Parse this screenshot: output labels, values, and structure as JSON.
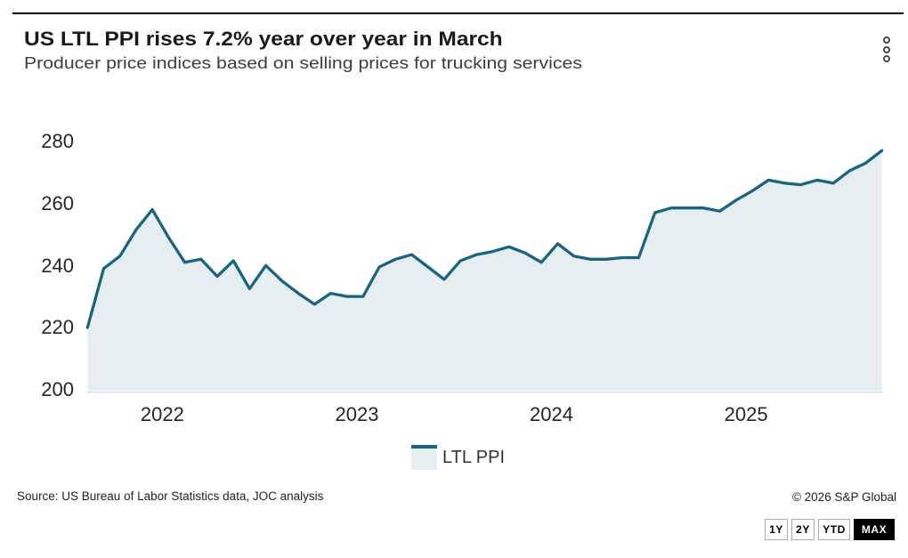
{
  "header": {
    "title": "US LTL PPI rises 7.2% year over year in March",
    "subtitle": "Producer price indices based on selling prices for trucking services"
  },
  "chart_data": {
    "type": "area",
    "title": "US LTL PPI rises 7.2% year over year in March",
    "subtitle": "Producer price indices based on selling prices for trucking services",
    "x_months": [
      "2022-02",
      "2022-03",
      "2022-04",
      "2022-05",
      "2022-06",
      "2022-07",
      "2022-08",
      "2022-09",
      "2022-10",
      "2022-11",
      "2022-12",
      "2023-01",
      "2023-02",
      "2023-03",
      "2023-04",
      "2023-05",
      "2023-06",
      "2023-07",
      "2023-08",
      "2023-09",
      "2023-10",
      "2023-11",
      "2023-12",
      "2024-01",
      "2024-02",
      "2024-03",
      "2024-04",
      "2024-05",
      "2024-06",
      "2024-07",
      "2024-08",
      "2024-09",
      "2024-10",
      "2024-11",
      "2024-12",
      "2025-01",
      "2025-02",
      "2025-03",
      "2025-04",
      "2025-05",
      "2025-06",
      "2025-07",
      "2025-08",
      "2025-09",
      "2025-10",
      "2025-11",
      "2025-12",
      "2026-01",
      "2026-02",
      "2026-03"
    ],
    "series": [
      {
        "name": "LTL PPI",
        "values": [
          220.5,
          239.5,
          243.5,
          252,
          258.5,
          249.5,
          241.5,
          242.5,
          237,
          242,
          233,
          240.5,
          235.5,
          231.5,
          228,
          231.5,
          230.5,
          230.5,
          240,
          242.5,
          244,
          240,
          236,
          242,
          244,
          245,
          246.5,
          244.5,
          241.5,
          247.5,
          243.5,
          242.5,
          242.5,
          243,
          243,
          257.5,
          259,
          259,
          259,
          258,
          261.5,
          264.5,
          268,
          267,
          266.5,
          268,
          267,
          271,
          273.5,
          277.5
        ]
      }
    ],
    "x_tick_labels": [
      "2022",
      "2023",
      "2024",
      "2025"
    ],
    "y_tick_labels": [
      "280",
      "260",
      "240",
      "220",
      "200"
    ],
    "ylim": [
      200,
      280
    ],
    "grid": false,
    "legend_position": "bottom",
    "line_color": "#19647f",
    "fill_color": "#e7eef2"
  },
  "legend": {
    "label": "LTL PPI"
  },
  "footer": {
    "source": "Source: US Bureau of Labor Statistics data, JOC analysis",
    "copyright": "© 2026 S&P Global"
  },
  "range_buttons": [
    {
      "label": "1Y",
      "active": false
    },
    {
      "label": "2Y",
      "active": false
    },
    {
      "label": "YTD",
      "active": false
    },
    {
      "label": "MAX",
      "active": true
    }
  ]
}
